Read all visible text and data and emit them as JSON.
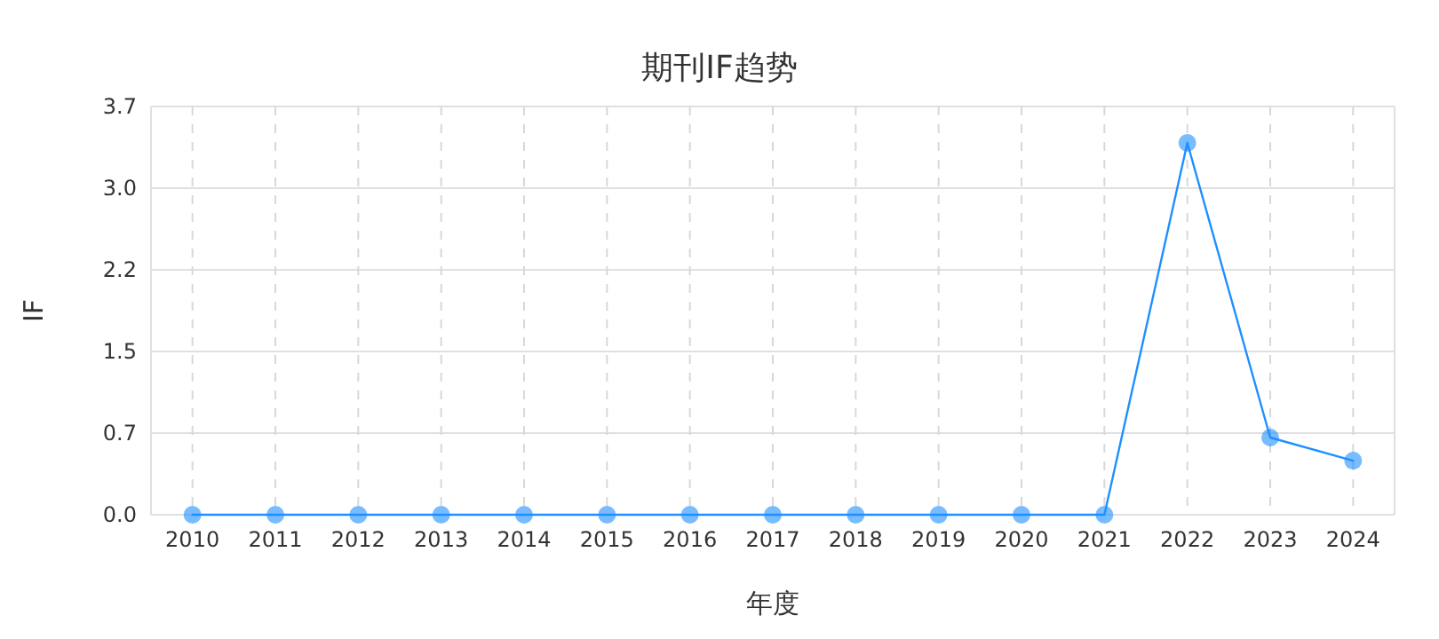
{
  "chart_data": {
    "type": "line",
    "title": "期刊IF趋势",
    "xlabel": "年度",
    "ylabel": "IF",
    "categories": [
      "2010",
      "2011",
      "2012",
      "2013",
      "2014",
      "2015",
      "2016",
      "2017",
      "2018",
      "2019",
      "2020",
      "2021",
      "2022",
      "2023",
      "2024"
    ],
    "series": [
      {
        "color": "#1e90ff",
        "values": [
          0,
          0,
          0,
          0,
          0,
          0,
          0,
          0,
          0,
          0,
          0,
          0,
          3.37,
          0.7,
          0.49
        ]
      }
    ],
    "ylim": [
      0,
      3.7
    ],
    "yticks": [
      {
        "value": 0,
        "label": "0.0"
      },
      {
        "value": 0.74,
        "label": "0.7"
      },
      {
        "value": 1.48,
        "label": "1.5"
      },
      {
        "value": 2.22,
        "label": "2.2"
      },
      {
        "value": 2.96,
        "label": "3.0"
      },
      {
        "value": 3.7,
        "label": "3.7"
      }
    ],
    "grid": true,
    "marker": "circle"
  }
}
